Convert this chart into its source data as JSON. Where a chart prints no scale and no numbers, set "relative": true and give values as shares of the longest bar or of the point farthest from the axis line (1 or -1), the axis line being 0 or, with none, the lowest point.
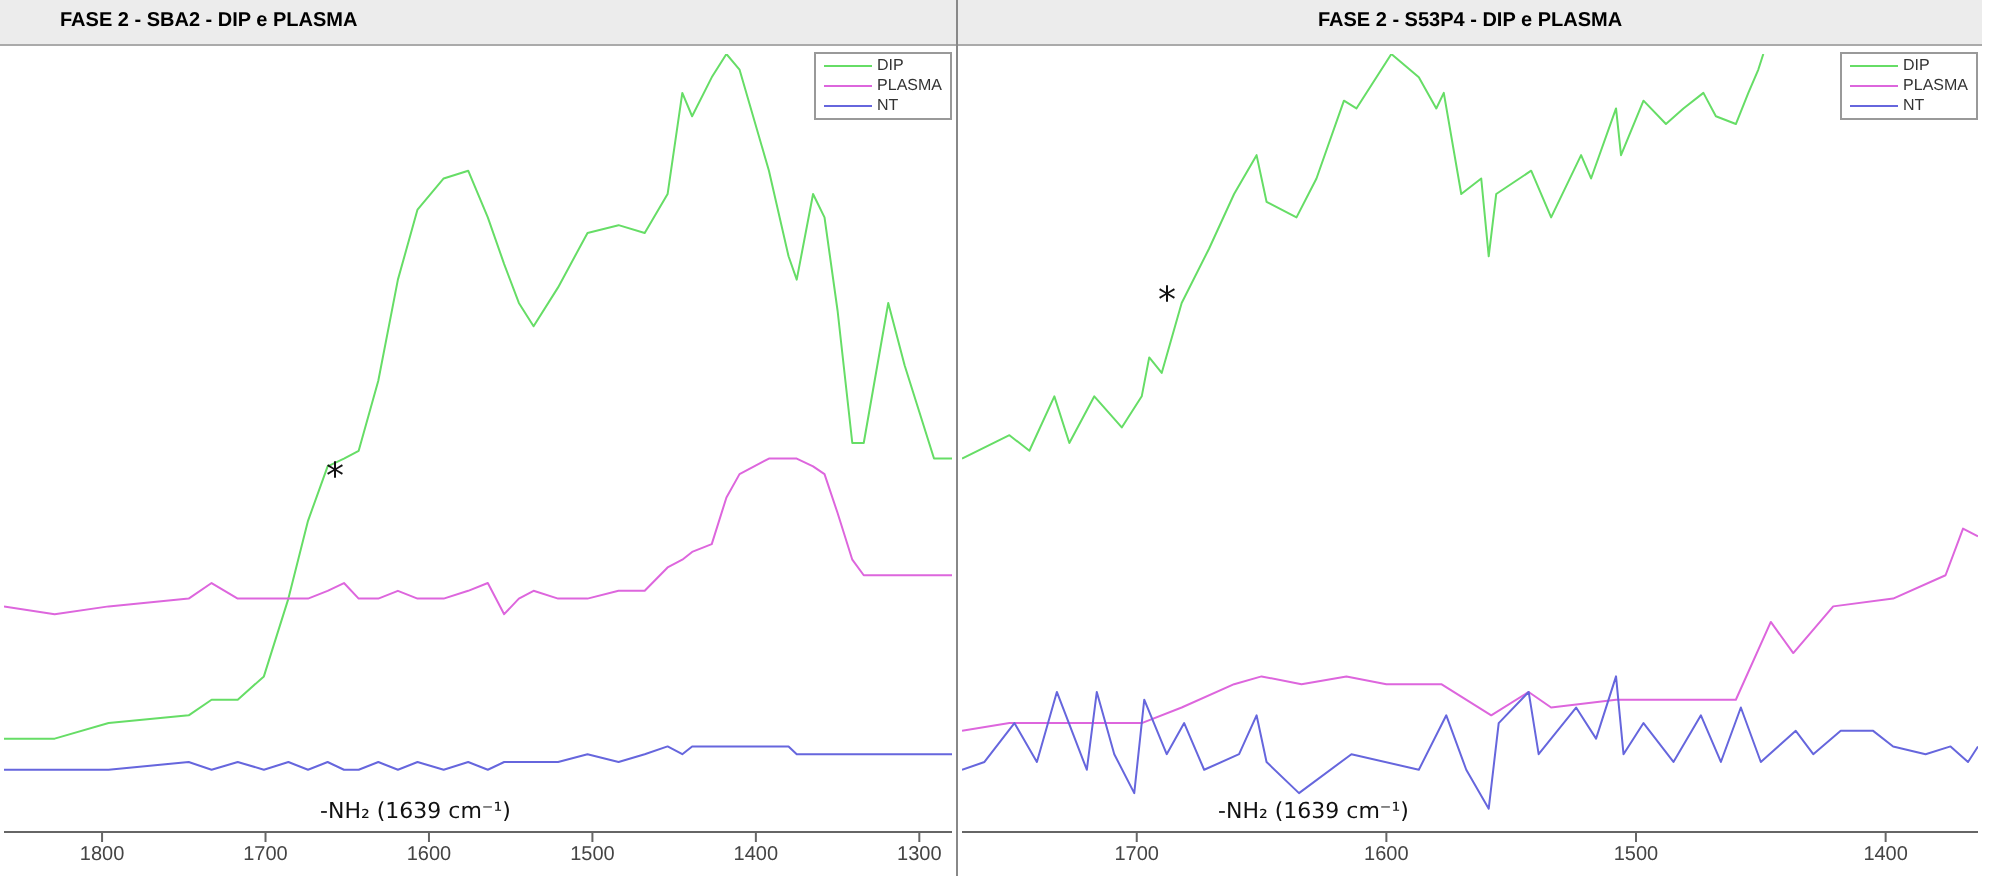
{
  "chart_data": [
    {
      "type": "line",
      "title": "FASE 2 - SBA2 - DIP e PLASMA",
      "relative": true,
      "tick_labels": "x",
      "legend": "top right",
      "xlim": [
        1860,
        1280
      ],
      "xticks": [
        1800,
        1700,
        1600,
        1500,
        1400,
        1300
      ],
      "series": [
        {
          "name": "DIP",
          "color": "#66dd66",
          "x": [
            1860,
            1829,
            1796,
            1747,
            1733,
            1717,
            1701,
            1686,
            1674,
            1662,
            1652,
            1643,
            1631,
            1619,
            1607,
            1591,
            1576,
            1564,
            1554,
            1545,
            1536,
            1521,
            1503,
            1484,
            1468,
            1454,
            1445,
            1439,
            1427,
            1418,
            1410,
            1392,
            1380,
            1375,
            1365,
            1358,
            1350,
            1341,
            1334,
            1319,
            1309,
            1291,
            1280
          ],
          "values": [
            0.12,
            0.12,
            0.14,
            0.15,
            0.17,
            0.17,
            0.2,
            0.3,
            0.4,
            0.47,
            0.48,
            0.49,
            0.58,
            0.71,
            0.8,
            0.84,
            0.85,
            0.79,
            0.73,
            0.68,
            0.65,
            0.7,
            0.77,
            0.78,
            0.77,
            0.82,
            0.95,
            0.92,
            0.97,
            1,
            0.98,
            0.85,
            0.74,
            0.71,
            0.82,
            0.79,
            0.67,
            0.5,
            0.5,
            0.68,
            0.6,
            0.48,
            0.48
          ]
        },
        {
          "name": "PLASMA",
          "color": "#dd66dd",
          "x": [
            1860,
            1829,
            1796,
            1747,
            1733,
            1717,
            1701,
            1686,
            1674,
            1662,
            1652,
            1643,
            1631,
            1619,
            1607,
            1591,
            1576,
            1564,
            1554,
            1545,
            1536,
            1521,
            1503,
            1484,
            1468,
            1454,
            1445,
            1439,
            1427,
            1418,
            1410,
            1392,
            1380,
            1375,
            1365,
            1358,
            1350,
            1341,
            1334,
            1319,
            1309,
            1291,
            1280
          ],
          "values": [
            0.29,
            0.28,
            0.29,
            0.3,
            0.32,
            0.3,
            0.3,
            0.3,
            0.3,
            0.31,
            0.32,
            0.3,
            0.3,
            0.31,
            0.3,
            0.3,
            0.31,
            0.32,
            0.28,
            0.3,
            0.31,
            0.3,
            0.3,
            0.31,
            0.31,
            0.34,
            0.35,
            0.36,
            0.37,
            0.43,
            0.46,
            0.48,
            0.48,
            0.48,
            0.47,
            0.46,
            0.41,
            0.35,
            0.33,
            0.33,
            0.33,
            0.33,
            0.33
          ]
        },
        {
          "name": "NT",
          "color": "#6666dd",
          "x": [
            1860,
            1829,
            1796,
            1747,
            1733,
            1717,
            1701,
            1686,
            1674,
            1662,
            1652,
            1643,
            1631,
            1619,
            1607,
            1591,
            1576,
            1564,
            1554,
            1545,
            1536,
            1521,
            1503,
            1484,
            1468,
            1454,
            1445,
            1439,
            1427,
            1418,
            1410,
            1392,
            1380,
            1375,
            1365,
            1358,
            1350,
            1341,
            1334,
            1319,
            1309,
            1291,
            1280
          ],
          "values": [
            0.08,
            0.08,
            0.08,
            0.09,
            0.08,
            0.09,
            0.08,
            0.09,
            0.08,
            0.09,
            0.08,
            0.08,
            0.09,
            0.08,
            0.09,
            0.08,
            0.09,
            0.08,
            0.09,
            0.09,
            0.09,
            0.09,
            0.1,
            0.09,
            0.1,
            0.11,
            0.1,
            0.11,
            0.11,
            0.11,
            0.11,
            0.11,
            0.11,
            0.1,
            0.1,
            0.1,
            0.1,
            0.1,
            0.1,
            0.1,
            0.1,
            0.1,
            0.1
          ]
        }
      ],
      "annotations": [
        "*",
        "-NH₂ (1639 cm⁻¹)"
      ]
    },
    {
      "type": "line",
      "title": "FASE 2 - S53P4 - DIP e PLASMA",
      "relative": true,
      "tick_labels": "x",
      "legend": "top right",
      "xlim": [
        1770,
        1363
      ],
      "xticks": [
        1700,
        1600,
        1500,
        1400
      ],
      "series": [
        {
          "name": "DIP",
          "color": "#66dd66",
          "x": [
            1770,
            1751,
            1743,
            1733,
            1727,
            1717,
            1706,
            1698,
            1695,
            1690,
            1682,
            1671,
            1661,
            1652,
            1648,
            1636,
            1628,
            1617,
            1612,
            1598,
            1587,
            1580,
            1577,
            1570,
            1562,
            1559,
            1556,
            1542,
            1534,
            1522,
            1518,
            1508,
            1506,
            1497,
            1488,
            1481,
            1473,
            1468,
            1460,
            1455,
            1451,
            1449
          ],
          "values": [
            0.48,
            0.51,
            0.49,
            0.56,
            0.5,
            0.56,
            0.52,
            0.56,
            0.61,
            0.59,
            0.68,
            0.75,
            0.82,
            0.87,
            0.81,
            0.79,
            0.84,
            0.94,
            0.93,
            1,
            0.97,
            0.93,
            0.95,
            0.82,
            0.84,
            0.74,
            0.82,
            0.85,
            0.79,
            0.87,
            0.84,
            0.93,
            0.87,
            0.94,
            0.91,
            0.93,
            0.95,
            0.92,
            0.91,
            0.95,
            0.98,
            1
          ]
        },
        {
          "name": "PLASMA",
          "color": "#dd66dd",
          "x": [
            1770,
            1751,
            1733,
            1698,
            1682,
            1661,
            1650,
            1634,
            1616,
            1600,
            1578,
            1558,
            1543,
            1534,
            1508,
            1481,
            1460,
            1446,
            1437,
            1421,
            1397,
            1376,
            1369,
            1363
          ],
          "values": [
            0.13,
            0.14,
            0.14,
            0.14,
            0.16,
            0.19,
            0.2,
            0.19,
            0.2,
            0.19,
            0.19,
            0.15,
            0.18,
            0.16,
            0.17,
            0.17,
            0.17,
            0.27,
            0.23,
            0.29,
            0.3,
            0.33,
            0.39,
            0.38
          ]
        },
        {
          "name": "NT",
          "color": "#6666dd",
          "x": [
            1770,
            1761,
            1749,
            1740,
            1732,
            1720,
            1716,
            1709,
            1701,
            1697,
            1688,
            1681,
            1673,
            1659,
            1652,
            1648,
            1635,
            1614,
            1587,
            1576,
            1568,
            1559,
            1555,
            1543,
            1539,
            1524,
            1516,
            1508,
            1505,
            1497,
            1485,
            1474,
            1466,
            1458,
            1450,
            1436,
            1429,
            1418,
            1405,
            1397,
            1384,
            1374,
            1367,
            1363
          ],
          "values": [
            0.08,
            0.09,
            0.14,
            0.09,
            0.18,
            0.08,
            0.18,
            0.1,
            0.05,
            0.17,
            0.1,
            0.14,
            0.08,
            0.1,
            0.15,
            0.09,
            0.05,
            0.1,
            0.08,
            0.15,
            0.08,
            0.03,
            0.14,
            0.18,
            0.1,
            0.16,
            0.12,
            0.2,
            0.1,
            0.14,
            0.09,
            0.15,
            0.09,
            0.16,
            0.09,
            0.13,
            0.1,
            0.13,
            0.13,
            0.11,
            0.1,
            0.11,
            0.09,
            0.11
          ]
        }
      ],
      "annotations": [
        "*",
        "-NH₂ (1639 cm⁻¹)"
      ]
    }
  ]
}
